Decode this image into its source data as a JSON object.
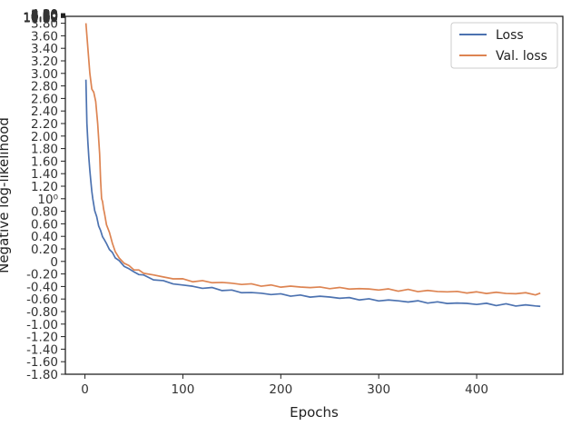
{
  "chart_data": {
    "type": "line",
    "xlabel": "Epochs",
    "ylabel": "Negative log-likelihood",
    "xlim": [
      -20,
      488
    ],
    "ylim": [
      -1.8,
      3.91
    ],
    "x_ticks": [
      "0",
      "100",
      "200",
      "300",
      "400"
    ],
    "x_tick_values": [
      0,
      100,
      200,
      300,
      400
    ],
    "y_ticks": [
      "-1.80",
      "-1.60",
      "-1.40",
      "-1.20",
      "-1.00",
      "-0.80",
      "-0.60",
      "-0.40",
      "-0.20",
      "0",
      "0.20",
      "0.40",
      "0.60",
      "0.80",
      "10⁰",
      "1.20",
      "1.40",
      "1.60",
      "1.80",
      "2.00",
      "2.20",
      "2.40",
      "2.60",
      "2.80",
      "3.00",
      "3.20",
      "3.40",
      "3.60",
      "3.80",
      "4.00",
      "4.20",
      "4.40",
      "4.60",
      "4.80",
      "5.00",
      "5.20",
      "5.40",
      "5.60",
      "5.80",
      "6.00",
      "6.20",
      "6.40",
      "6.60",
      "6.80",
      "7.00",
      "7.20",
      "7.40",
      "7.60",
      "7.80",
      "8.00",
      "8.20",
      "8.40",
      "8.60",
      "8.80",
      "9.00",
      "9.20",
      "9.40",
      "9.60",
      "9.80",
      "10.00",
      "10.20",
      "10.40",
      "10.60",
      "10.80",
      "11.00"
    ],
    "y_tick_values": [
      -1.8,
      -1.6,
      -1.4,
      -1.2,
      -1.0,
      -0.8,
      -0.6,
      -0.4,
      -0.2,
      0,
      0.2,
      0.4,
      0.6,
      0.8,
      1.0,
      1.2,
      1.4,
      1.6,
      1.8,
      2.0,
      2.2,
      2.4,
      2.6,
      2.8,
      3.0,
      3.2,
      3.4,
      3.6,
      3.8,
      4.0,
      4.2,
      4.4,
      4.6,
      4.8,
      5.0,
      5.2,
      5.4,
      5.6,
      5.8,
      6.0,
      6.2,
      6.4,
      6.6,
      6.8,
      7.0,
      7.2,
      7.4,
      7.6,
      7.8,
      8.0,
      8.2,
      8.4,
      8.6,
      8.8,
      9.0,
      9.2,
      9.4,
      9.6,
      9.8,
      10.0,
      10.2,
      10.4,
      10.6,
      10.8,
      11.0
    ],
    "legend_position": "top-right",
    "grid": false,
    "series": [
      {
        "name": "Loss",
        "color": "#4c72b0",
        "x": [
          1,
          2,
          3,
          4,
          5,
          6,
          7,
          8,
          9,
          10,
          12,
          14,
          16,
          18,
          20,
          22,
          25,
          28,
          31,
          35,
          40,
          45,
          50,
          55,
          60,
          70,
          80,
          90,
          100,
          110,
          120,
          130,
          140,
          150,
          160,
          170,
          180,
          190,
          200,
          210,
          220,
          230,
          240,
          250,
          260,
          270,
          280,
          290,
          300,
          310,
          320,
          330,
          340,
          350,
          360,
          370,
          380,
          390,
          400,
          410,
          420,
          430,
          440,
          450,
          460,
          465
        ],
        "y": [
          2.9,
          2.2,
          1.9,
          1.65,
          1.45,
          1.28,
          1.12,
          1.0,
          0.9,
          0.82,
          0.7,
          0.58,
          0.48,
          0.4,
          0.34,
          0.28,
          0.2,
          0.13,
          0.07,
          0.0,
          -0.07,
          -0.12,
          -0.17,
          -0.2,
          -0.23,
          -0.28,
          -0.32,
          -0.35,
          -0.38,
          -0.4,
          -0.42,
          -0.43,
          -0.45,
          -0.47,
          -0.49,
          -0.5,
          -0.51,
          -0.52,
          -0.53,
          -0.54,
          -0.55,
          -0.56,
          -0.56,
          -0.57,
          -0.58,
          -0.59,
          -0.6,
          -0.61,
          -0.62,
          -0.62,
          -0.63,
          -0.64,
          -0.64,
          -0.65,
          -0.66,
          -0.66,
          -0.67,
          -0.67,
          -0.68,
          -0.68,
          -0.69,
          -0.69,
          -0.7,
          -0.7,
          -0.71,
          -0.71
        ]
      },
      {
        "name": "Val. loss",
        "color": "#dd8452",
        "x": [
          1,
          3,
          5,
          7,
          9,
          11,
          13,
          15,
          16,
          17,
          18,
          19,
          20,
          22,
          25,
          28,
          31,
          35,
          40,
          45,
          50,
          55,
          60,
          70,
          80,
          90,
          100,
          110,
          120,
          130,
          140,
          150,
          160,
          170,
          180,
          190,
          200,
          210,
          220,
          230,
          240,
          250,
          260,
          270,
          280,
          290,
          300,
          310,
          320,
          330,
          340,
          350,
          360,
          370,
          380,
          390,
          400,
          410,
          420,
          430,
          440,
          450,
          460,
          465
        ],
        "y": [
          3.8,
          3.4,
          3.0,
          2.75,
          2.7,
          2.55,
          2.2,
          1.7,
          1.3,
          1.0,
          0.95,
          0.85,
          0.75,
          0.6,
          0.45,
          0.3,
          0.15,
          0.05,
          -0.02,
          -0.08,
          -0.12,
          -0.15,
          -0.18,
          -0.22,
          -0.25,
          -0.27,
          -0.29,
          -0.31,
          -0.32,
          -0.33,
          -0.34,
          -0.35,
          -0.36,
          -0.37,
          -0.38,
          -0.39,
          -0.4,
          -0.4,
          -0.41,
          -0.41,
          -0.42,
          -0.42,
          -0.43,
          -0.43,
          -0.44,
          -0.44,
          -0.45,
          -0.45,
          -0.46,
          -0.46,
          -0.47,
          -0.47,
          -0.48,
          -0.48,
          -0.49,
          -0.49,
          -0.5,
          -0.5,
          -0.5,
          -0.51,
          -0.51,
          -0.51,
          -0.52,
          -0.52
        ]
      }
    ]
  }
}
